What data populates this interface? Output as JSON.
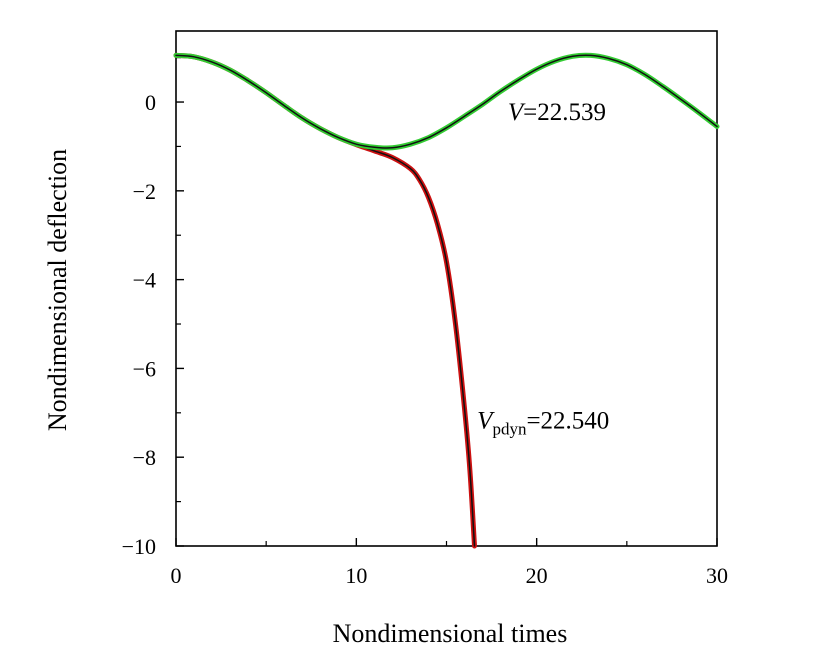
{
  "chart_data": {
    "type": "line",
    "title": "",
    "xlabel": "Nondimensional times",
    "ylabel": "Nondimensional deflection",
    "xlim": [
      0,
      30
    ],
    "ylim": [
      -10,
      1.6
    ],
    "xticks": [
      0,
      10,
      20,
      30
    ],
    "yticks": [
      0,
      -2,
      -4,
      -6,
      -8,
      -10
    ],
    "xtick_labels": [
      "0",
      "10",
      "20",
      "30"
    ],
    "ytick_labels": [
      "0",
      "−2",
      "−4",
      "−6",
      "−8",
      "−10"
    ],
    "grid": false,
    "series": [
      {
        "name": "V=22.539",
        "color": "#33cc33",
        "x": [
          0,
          1,
          2,
          3,
          4,
          5,
          6,
          7,
          8,
          9,
          10,
          11,
          12,
          13,
          14,
          15,
          16,
          17,
          18,
          19,
          20,
          21,
          22,
          23,
          24,
          25,
          26,
          27,
          28,
          29,
          30
        ],
        "y": [
          1.05,
          1.02,
          0.9,
          0.72,
          0.48,
          0.21,
          -0.08,
          -0.36,
          -0.6,
          -0.8,
          -0.95,
          -1.02,
          -1.03,
          -0.95,
          -0.8,
          -0.58,
          -0.32,
          -0.05,
          0.24,
          0.5,
          0.74,
          0.92,
          1.03,
          1.05,
          0.98,
          0.84,
          0.62,
          0.35,
          0.06,
          -0.24,
          -0.55
        ]
      },
      {
        "name": "Vpdyn=22.540",
        "color": "#cc1111",
        "x": [
          0,
          1,
          2,
          3,
          4,
          5,
          6,
          7,
          8,
          9,
          10,
          11,
          12,
          13,
          13.5,
          14,
          14.5,
          15,
          15.5,
          16,
          16.3,
          16.55
        ],
        "y": [
          1.05,
          1.02,
          0.9,
          0.72,
          0.48,
          0.21,
          -0.08,
          -0.36,
          -0.6,
          -0.8,
          -0.96,
          -1.1,
          -1.25,
          -1.5,
          -1.75,
          -2.15,
          -2.75,
          -3.6,
          -5.0,
          -6.9,
          -8.3,
          -10.0
        ]
      }
    ],
    "annotations": [
      {
        "series": 0,
        "symbol": "V",
        "subscript": "",
        "rest": "=22.539",
        "at_x": 18.4,
        "at_y": -0.4
      },
      {
        "series": 1,
        "symbol": "V",
        "subscript": "pdyn",
        "rest": "=22.540",
        "at_x": 16.7,
        "at_y": -7.35
      }
    ]
  }
}
